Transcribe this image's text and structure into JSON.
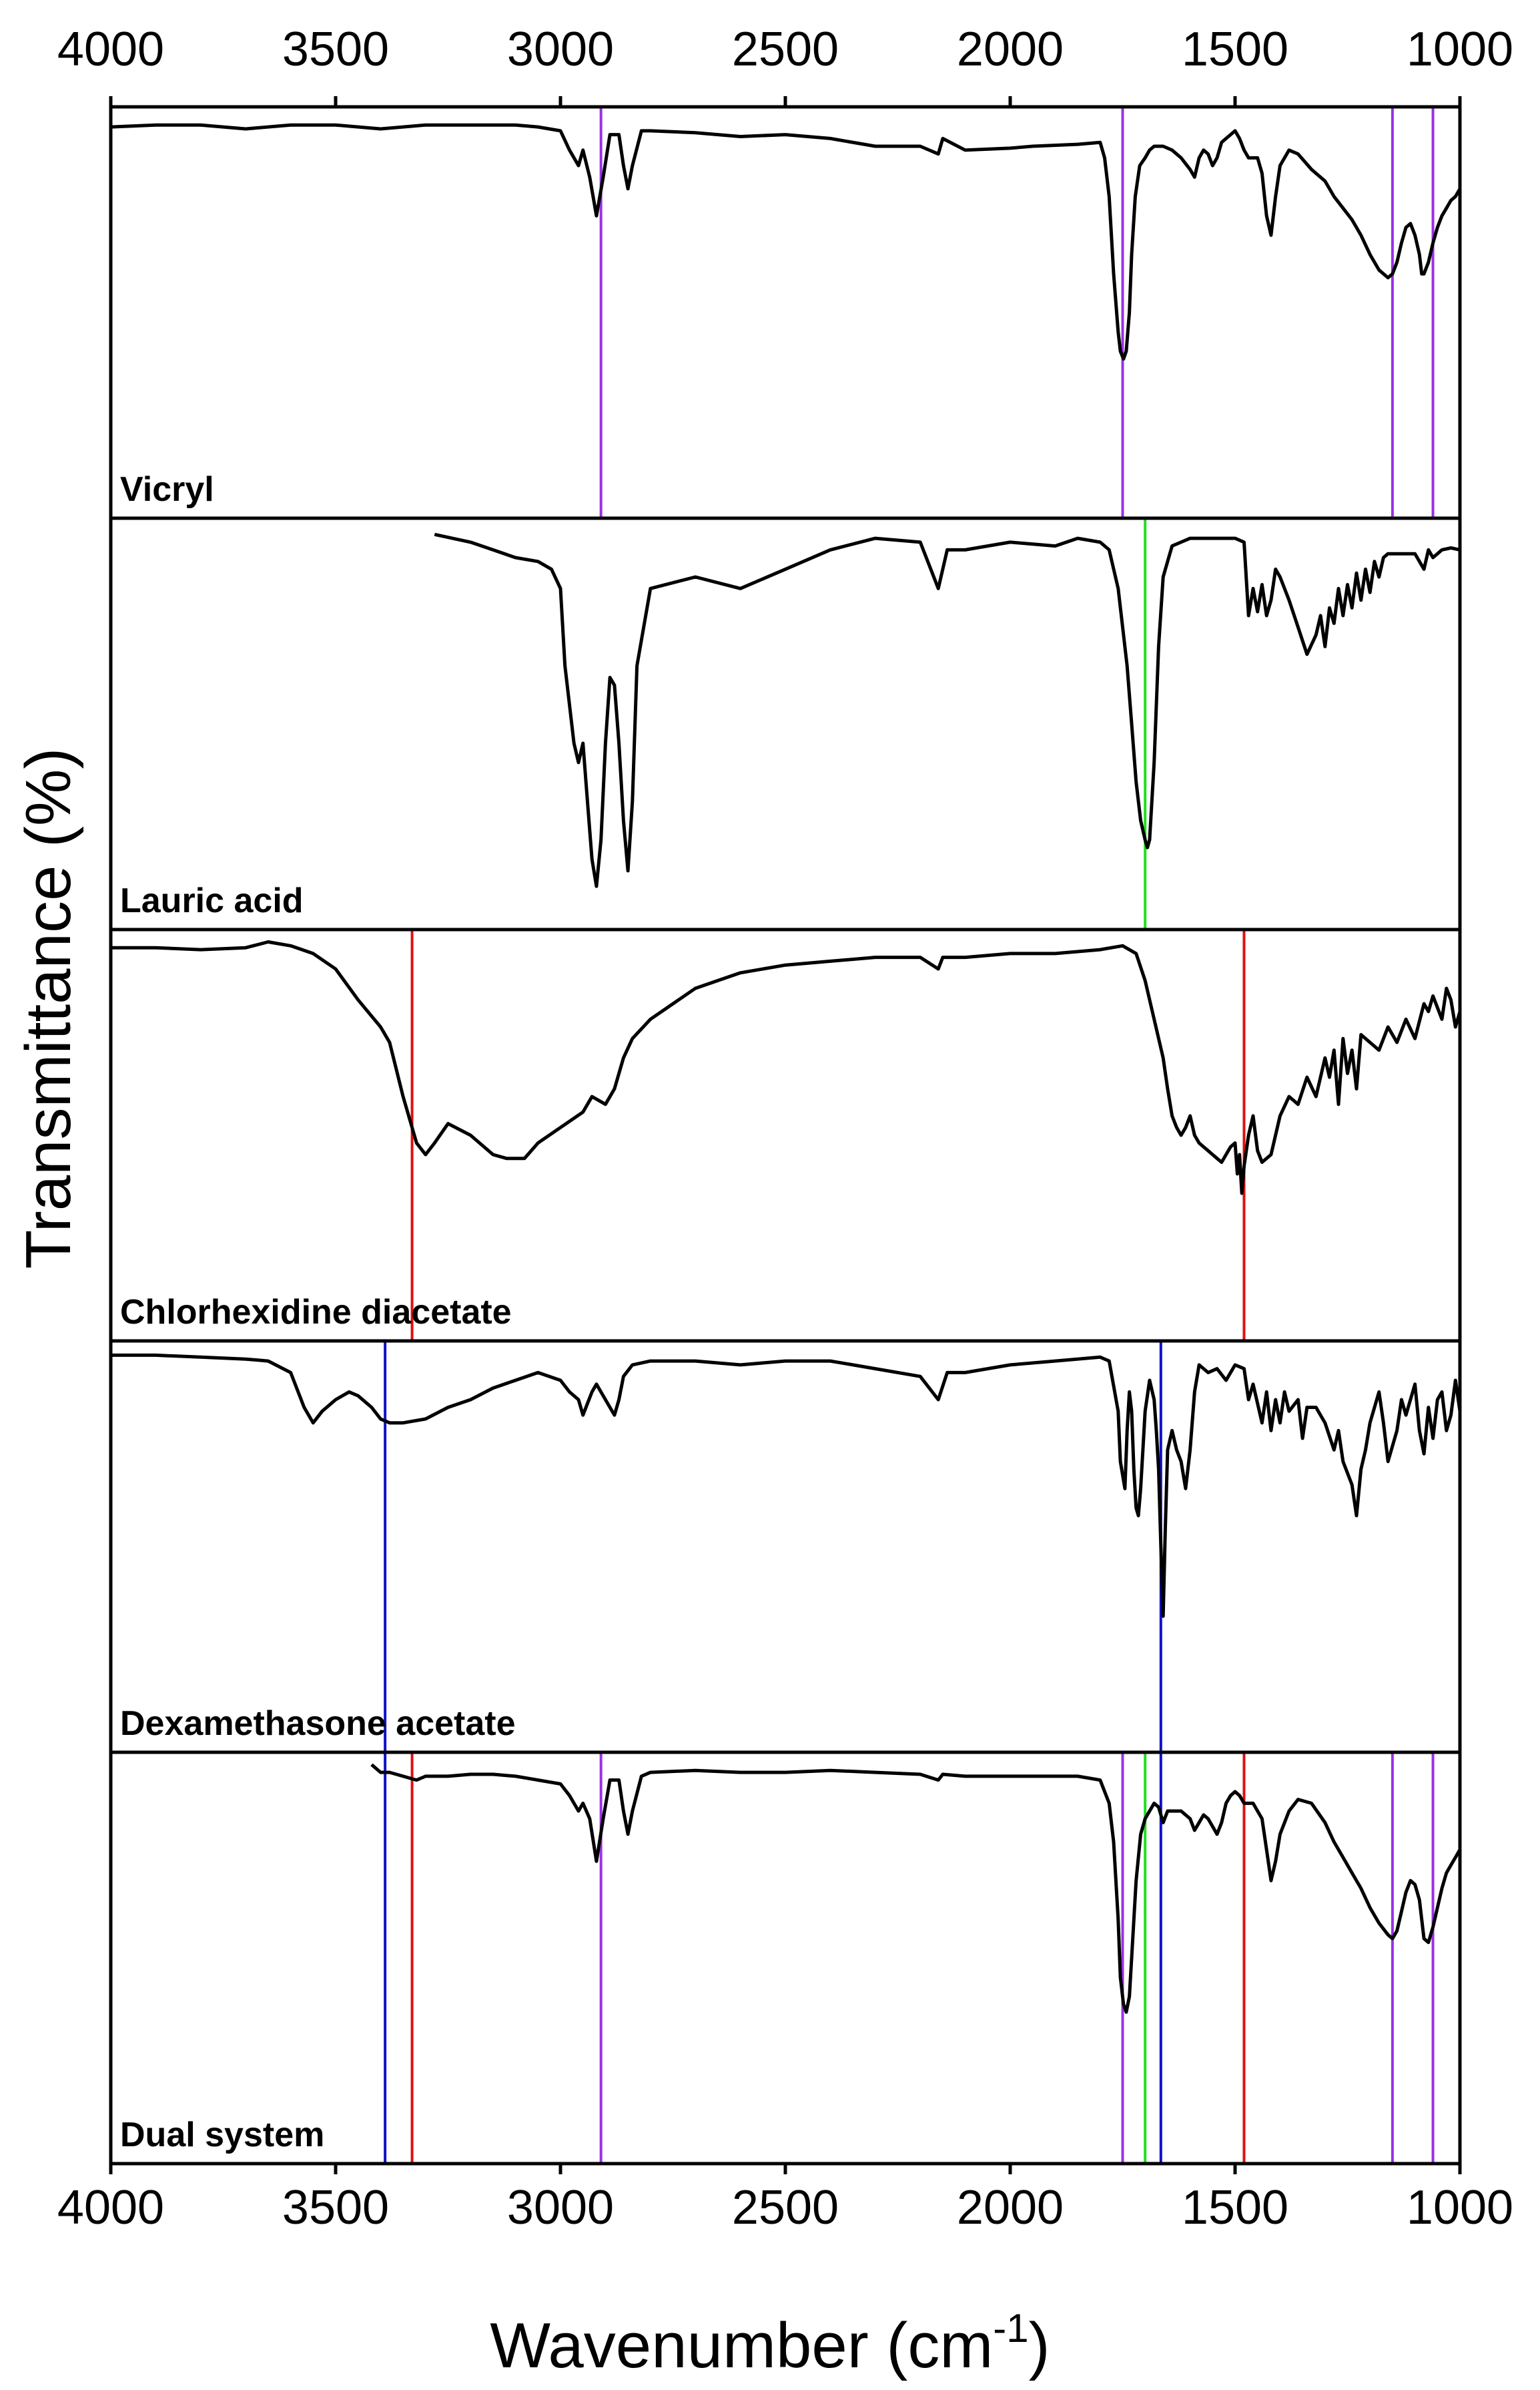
{
  "chart_data": {
    "type": "line",
    "layout": "stacked",
    "xlabel": "Wavenumber (cm",
    "xlabel_sup": "-1",
    "xlabel_end": ")",
    "ylabel": "Transmittance (%)",
    "xlim": [
      4000,
      1000
    ],
    "x_reversed": true,
    "xticks": [
      4000,
      3500,
      3000,
      2500,
      2000,
      1500,
      1000
    ],
    "xtick_labels": [
      "4000",
      "3500",
      "3000",
      "2500",
      "2000",
      "1500",
      "1000"
    ],
    "grid": false,
    "colors": {
      "spectrum": "#000000",
      "vicryl_marker": "#9b30e8",
      "lauric_marker": "#22dd22",
      "chlorhexidine_marker": "#e01010",
      "dexamethasone_marker": "#1010c8"
    },
    "series": [
      {
        "name": "Vicryl",
        "ylim": [
          0,
          1
        ],
        "x": [
          4000,
          3900,
          3800,
          3700,
          3600,
          3500,
          3400,
          3300,
          3200,
          3100,
          3050,
          3000,
          2980,
          2960,
          2950,
          2935,
          2920,
          2905,
          2890,
          2870,
          2860,
          2850,
          2840,
          2820,
          2800,
          2700,
          2600,
          2500,
          2400,
          2300,
          2200,
          2160,
          2150,
          2100,
          2000,
          1950,
          1850,
          1800,
          1790,
          1780,
          1770,
          1760,
          1755,
          1748,
          1742,
          1735,
          1730,
          1722,
          1712,
          1700,
          1690,
          1680,
          1660,
          1640,
          1620,
          1600,
          1590,
          1580,
          1570,
          1560,
          1550,
          1540,
          1530,
          1520,
          1510,
          1500,
          1490,
          1480,
          1470,
          1460,
          1450,
          1440,
          1430,
          1420,
          1410,
          1400,
          1380,
          1360,
          1330,
          1300,
          1280,
          1260,
          1240,
          1220,
          1200,
          1180,
          1160,
          1150,
          1140,
          1130,
          1120,
          1110,
          1100,
          1090,
          1085,
          1080,
          1070,
          1060,
          1050,
          1040,
          1030,
          1020,
          1010,
          1000
        ],
        "y": [
          0.98,
          0.985,
          0.985,
          0.975,
          0.985,
          0.985,
          0.975,
          0.985,
          0.985,
          0.985,
          0.98,
          0.97,
          0.92,
          0.88,
          0.92,
          0.85,
          0.75,
          0.85,
          0.96,
          0.96,
          0.88,
          0.82,
          0.88,
          0.97,
          0.97,
          0.965,
          0.955,
          0.96,
          0.95,
          0.93,
          0.93,
          0.91,
          0.95,
          0.92,
          0.925,
          0.93,
          0.935,
          0.94,
          0.9,
          0.8,
          0.6,
          0.45,
          0.4,
          0.38,
          0.4,
          0.5,
          0.65,
          0.8,
          0.88,
          0.9,
          0.92,
          0.93,
          0.93,
          0.92,
          0.9,
          0.87,
          0.85,
          0.9,
          0.92,
          0.91,
          0.88,
          0.9,
          0.94,
          0.95,
          0.96,
          0.97,
          0.95,
          0.92,
          0.9,
          0.9,
          0.9,
          0.86,
          0.75,
          0.7,
          0.8,
          0.88,
          0.92,
          0.91,
          0.87,
          0.84,
          0.8,
          0.77,
          0.74,
          0.7,
          0.65,
          0.61,
          0.59,
          0.6,
          0.63,
          0.68,
          0.72,
          0.73,
          0.7,
          0.65,
          0.6,
          0.6,
          0.63,
          0.68,
          0.72,
          0.75,
          0.77,
          0.79,
          0.8,
          0.82
        ],
        "markers": [
          {
            "x": 2910,
            "color_key": "vicryl_marker"
          },
          {
            "x": 1750,
            "color_key": "vicryl_marker"
          },
          {
            "x": 1150,
            "color_key": "vicryl_marker"
          },
          {
            "x": 1060,
            "color_key": "vicryl_marker"
          }
        ]
      },
      {
        "name": "Lauric acid",
        "ylim": [
          0,
          1
        ],
        "x": [
          3280,
          3200,
          3150,
          3100,
          3050,
          3020,
          3000,
          2990,
          2970,
          2960,
          2950,
          2940,
          2930,
          2920,
          2910,
          2900,
          2890,
          2880,
          2870,
          2860,
          2850,
          2840,
          2830,
          2800,
          2700,
          2600,
          2500,
          2400,
          2300,
          2200,
          2160,
          2140,
          2100,
          2000,
          1900,
          1850,
          1800,
          1780,
          1760,
          1740,
          1730,
          1720,
          1710,
          1700,
          1695,
          1690,
          1680,
          1670,
          1660,
          1640,
          1600,
          1550,
          1500,
          1480,
          1470,
          1460,
          1450,
          1440,
          1430,
          1420,
          1410,
          1400,
          1380,
          1360,
          1340,
          1320,
          1310,
          1300,
          1290,
          1280,
          1270,
          1260,
          1250,
          1240,
          1230,
          1220,
          1210,
          1200,
          1190,
          1180,
          1170,
          1160,
          1150,
          1100,
          1080,
          1070,
          1060,
          1040,
          1020,
          1000
        ],
        "y": [
          0.99,
          0.97,
          0.95,
          0.93,
          0.92,
          0.9,
          0.85,
          0.65,
          0.45,
          0.4,
          0.45,
          0.3,
          0.15,
          0.08,
          0.2,
          0.45,
          0.62,
          0.6,
          0.45,
          0.25,
          0.12,
          0.3,
          0.65,
          0.85,
          0.88,
          0.85,
          0.9,
          0.95,
          0.98,
          0.97,
          0.85,
          0.95,
          0.95,
          0.97,
          0.96,
          0.98,
          0.97,
          0.95,
          0.85,
          0.65,
          0.5,
          0.35,
          0.25,
          0.2,
          0.18,
          0.2,
          0.4,
          0.7,
          0.88,
          0.96,
          0.98,
          0.98,
          0.98,
          0.97,
          0.78,
          0.85,
          0.79,
          0.86,
          0.78,
          0.82,
          0.9,
          0.88,
          0.82,
          0.75,
          0.68,
          0.73,
          0.78,
          0.7,
          0.8,
          0.76,
          0.85,
          0.78,
          0.86,
          0.8,
          0.89,
          0.82,
          0.9,
          0.84,
          0.92,
          0.88,
          0.93,
          0.94,
          0.94,
          0.94,
          0.9,
          0.95,
          0.93,
          0.95,
          0.955,
          0.95
        ],
        "markers": [
          {
            "x": 1700,
            "color_key": "lauric_marker"
          }
        ]
      },
      {
        "name": "Chlorhexidine diacetate",
        "ylim": [
          0,
          1
        ],
        "x": [
          4000,
          3900,
          3800,
          3700,
          3650,
          3600,
          3550,
          3500,
          3450,
          3400,
          3380,
          3350,
          3320,
          3300,
          3280,
          3250,
          3200,
          3150,
          3120,
          3080,
          3050,
          3000,
          2950,
          2930,
          2900,
          2880,
          2860,
          2840,
          2800,
          2700,
          2600,
          2500,
          2400,
          2300,
          2200,
          2160,
          2150,
          2100,
          2000,
          1900,
          1800,
          1750,
          1720,
          1700,
          1680,
          1660,
          1650,
          1640,
          1630,
          1620,
          1610,
          1600,
          1590,
          1580,
          1570,
          1560,
          1550,
          1540,
          1530,
          1520,
          1510,
          1500,
          1495,
          1490,
          1485,
          1480,
          1470,
          1460,
          1450,
          1440,
          1420,
          1400,
          1380,
          1360,
          1340,
          1320,
          1300,
          1290,
          1280,
          1270,
          1260,
          1250,
          1240,
          1230,
          1220,
          1200,
          1180,
          1160,
          1140,
          1120,
          1100,
          1080,
          1070,
          1060,
          1040,
          1030,
          1020,
          1010,
          1000
        ],
        "y": [
          0.985,
          0.985,
          0.98,
          0.985,
          1.0,
          0.99,
          0.97,
          0.93,
          0.85,
          0.78,
          0.74,
          0.6,
          0.48,
          0.45,
          0.48,
          0.53,
          0.5,
          0.45,
          0.44,
          0.44,
          0.48,
          0.52,
          0.56,
          0.6,
          0.58,
          0.62,
          0.7,
          0.75,
          0.8,
          0.88,
          0.92,
          0.94,
          0.95,
          0.96,
          0.96,
          0.93,
          0.96,
          0.96,
          0.97,
          0.97,
          0.98,
          0.99,
          0.97,
          0.9,
          0.8,
          0.7,
          0.62,
          0.55,
          0.52,
          0.5,
          0.52,
          0.55,
          0.5,
          0.48,
          0.47,
          0.46,
          0.45,
          0.44,
          0.43,
          0.45,
          0.47,
          0.48,
          0.4,
          0.45,
          0.35,
          0.42,
          0.5,
          0.55,
          0.46,
          0.43,
          0.45,
          0.55,
          0.6,
          0.58,
          0.65,
          0.6,
          0.7,
          0.65,
          0.72,
          0.58,
          0.75,
          0.66,
          0.72,
          0.62,
          0.76,
          0.74,
          0.72,
          0.78,
          0.74,
          0.8,
          0.75,
          0.84,
          0.82,
          0.86,
          0.8,
          0.88,
          0.85,
          0.78,
          0.82
        ],
        "markers": [
          {
            "x": 3330,
            "color_key": "chlorhexidine_marker"
          },
          {
            "x": 1480,
            "color_key": "chlorhexidine_marker"
          }
        ]
      },
      {
        "name": "Dexamethasone acetate",
        "ylim": [
          0,
          1
        ],
        "x": [
          4000,
          3900,
          3800,
          3700,
          3650,
          3600,
          3570,
          3550,
          3530,
          3500,
          3470,
          3450,
          3420,
          3400,
          3380,
          3350,
          3300,
          3250,
          3200,
          3150,
          3100,
          3050,
          3000,
          2980,
          2960,
          2950,
          2940,
          2930,
          2920,
          2900,
          2880,
          2870,
          2860,
          2840,
          2800,
          2700,
          2600,
          2500,
          2400,
          2300,
          2200,
          2160,
          2140,
          2100,
          2000,
          1900,
          1800,
          1780,
          1760,
          1755,
          1745,
          1740,
          1735,
          1730,
          1725,
          1720,
          1715,
          1710,
          1700,
          1690,
          1680,
          1675,
          1670,
          1665,
          1660,
          1655,
          1650,
          1640,
          1630,
          1620,
          1610,
          1600,
          1590,
          1580,
          1560,
          1540,
          1520,
          1500,
          1480,
          1470,
          1460,
          1440,
          1430,
          1420,
          1410,
          1400,
          1390,
          1380,
          1360,
          1350,
          1340,
          1320,
          1300,
          1280,
          1270,
          1260,
          1240,
          1230,
          1220,
          1210,
          1200,
          1180,
          1170,
          1160,
          1140,
          1130,
          1120,
          1100,
          1090,
          1080,
          1070,
          1060,
          1050,
          1040,
          1030,
          1020,
          1010,
          1000
        ],
        "y": [
          0.995,
          0.995,
          0.99,
          0.985,
          0.98,
          0.95,
          0.86,
          0.82,
          0.85,
          0.88,
          0.9,
          0.89,
          0.86,
          0.83,
          0.82,
          0.82,
          0.83,
          0.86,
          0.88,
          0.91,
          0.93,
          0.95,
          0.93,
          0.9,
          0.88,
          0.84,
          0.87,
          0.9,
          0.92,
          0.88,
          0.84,
          0.88,
          0.94,
          0.97,
          0.98,
          0.98,
          0.97,
          0.98,
          0.98,
          0.96,
          0.94,
          0.88,
          0.95,
          0.95,
          0.97,
          0.98,
          0.99,
          0.98,
          0.85,
          0.72,
          0.65,
          0.8,
          0.9,
          0.85,
          0.7,
          0.6,
          0.58,
          0.65,
          0.85,
          0.93,
          0.88,
          0.8,
          0.7,
          0.5,
          0.32,
          0.55,
          0.75,
          0.8,
          0.75,
          0.72,
          0.65,
          0.75,
          0.9,
          0.97,
          0.95,
          0.96,
          0.93,
          0.97,
          0.96,
          0.88,
          0.92,
          0.82,
          0.9,
          0.8,
          0.88,
          0.82,
          0.9,
          0.85,
          0.88,
          0.78,
          0.86,
          0.86,
          0.82,
          0.75,
          0.8,
          0.72,
          0.66,
          0.58,
          0.7,
          0.75,
          0.82,
          0.9,
          0.82,
          0.72,
          0.8,
          0.88,
          0.84,
          0.92,
          0.8,
          0.74,
          0.86,
          0.78,
          0.88,
          0.9,
          0.8,
          0.84,
          0.93,
          0.85
        ],
        "markers": [
          {
            "x": 3390,
            "color_key": "dexamethasone_marker"
          },
          {
            "x": 1665,
            "color_key": "dexamethasone_marker"
          }
        ]
      },
      {
        "name": "Dual system",
        "ylim": [
          0,
          1
        ],
        "x": [
          3420,
          3400,
          3380,
          3350,
          3320,
          3300,
          3250,
          3200,
          3150,
          3100,
          3050,
          3000,
          2980,
          2960,
          2950,
          2935,
          2920,
          2905,
          2890,
          2870,
          2860,
          2850,
          2840,
          2820,
          2800,
          2700,
          2600,
          2500,
          2400,
          2300,
          2200,
          2160,
          2150,
          2100,
          2000,
          1900,
          1850,
          1800,
          1780,
          1770,
          1760,
          1755,
          1748,
          1742,
          1735,
          1730,
          1720,
          1710,
          1700,
          1690,
          1680,
          1670,
          1660,
          1650,
          1640,
          1620,
          1600,
          1590,
          1580,
          1570,
          1560,
          1550,
          1540,
          1530,
          1520,
          1510,
          1500,
          1490,
          1480,
          1470,
          1460,
          1450,
          1440,
          1430,
          1420,
          1410,
          1400,
          1380,
          1360,
          1330,
          1300,
          1280,
          1260,
          1240,
          1220,
          1200,
          1180,
          1160,
          1150,
          1140,
          1130,
          1120,
          1110,
          1100,
          1090,
          1085,
          1080,
          1070,
          1060,
          1050,
          1040,
          1030,
          1020,
          1010,
          1000
        ],
        "y": [
          1.0,
          0.98,
          0.98,
          0.97,
          0.96,
          0.97,
          0.97,
          0.975,
          0.975,
          0.97,
          0.96,
          0.95,
          0.92,
          0.88,
          0.9,
          0.86,
          0.75,
          0.86,
          0.96,
          0.96,
          0.88,
          0.82,
          0.88,
          0.97,
          0.98,
          0.985,
          0.98,
          0.98,
          0.985,
          0.98,
          0.975,
          0.96,
          0.975,
          0.97,
          0.97,
          0.97,
          0.97,
          0.96,
          0.9,
          0.8,
          0.6,
          0.45,
          0.38,
          0.36,
          0.4,
          0.5,
          0.7,
          0.82,
          0.86,
          0.88,
          0.9,
          0.89,
          0.85,
          0.88,
          0.88,
          0.88,
          0.86,
          0.83,
          0.85,
          0.87,
          0.86,
          0.84,
          0.82,
          0.85,
          0.9,
          0.92,
          0.93,
          0.92,
          0.9,
          0.9,
          0.9,
          0.88,
          0.86,
          0.78,
          0.7,
          0.75,
          0.82,
          0.88,
          0.91,
          0.9,
          0.85,
          0.8,
          0.76,
          0.72,
          0.68,
          0.63,
          0.59,
          0.56,
          0.55,
          0.57,
          0.62,
          0.67,
          0.7,
          0.69,
          0.65,
          0.6,
          0.55,
          0.54,
          0.58,
          0.63,
          0.68,
          0.72,
          0.74,
          0.76,
          0.78
        ],
        "markers": [
          {
            "x": 3390,
            "color_key": "dexamethasone_marker"
          },
          {
            "x": 3330,
            "color_key": "chlorhexidine_marker"
          },
          {
            "x": 2910,
            "color_key": "vicryl_marker"
          },
          {
            "x": 1750,
            "color_key": "vicryl_marker"
          },
          {
            "x": 1700,
            "color_key": "lauric_marker"
          },
          {
            "x": 1665,
            "color_key": "dexamethasone_marker"
          },
          {
            "x": 1480,
            "color_key": "chlorhexidine_marker"
          },
          {
            "x": 1150,
            "color_key": "vicryl_marker"
          },
          {
            "x": 1060,
            "color_key": "vicryl_marker"
          }
        ]
      }
    ]
  }
}
